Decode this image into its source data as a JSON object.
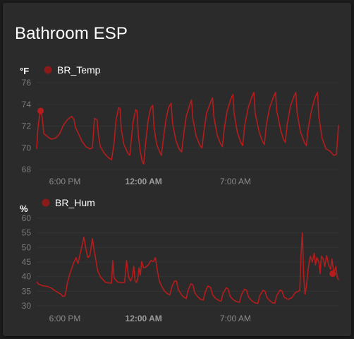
{
  "card": {
    "title": "Bathroom ESP"
  },
  "chart_data": [
    {
      "type": "line",
      "title": "",
      "ylabel": "°F",
      "ylim": [
        68,
        76
      ],
      "y_ticks": [
        "76",
        "74",
        "72",
        "70",
        "68"
      ],
      "x_ticks": [
        {
          "label": "6:00 PM",
          "t": 18.0,
          "bold": false
        },
        {
          "label": "12:00 AM",
          "t": 24.0,
          "bold": true
        },
        {
          "label": "7:00 AM",
          "t": 31.0,
          "bold": false
        }
      ],
      "xlim": [
        15.85,
        38.85
      ],
      "series": [
        {
          "name": "BR_Temp",
          "color": "#b71c1c",
          "points": [
            [
              15.85,
              69.9
            ],
            [
              15.95,
              71.9
            ],
            [
              16.1,
              73.2
            ],
            [
              16.2,
              73.4
            ],
            [
              16.3,
              72.5
            ],
            [
              16.4,
              71.3
            ],
            [
              16.6,
              71.1
            ],
            [
              16.8,
              70.9
            ],
            [
              17.0,
              70.8
            ],
            [
              17.3,
              70.9
            ],
            [
              17.6,
              71.3
            ],
            [
              17.9,
              72.1
            ],
            [
              18.2,
              72.6
            ],
            [
              18.5,
              72.9
            ],
            [
              18.7,
              72.6
            ],
            [
              18.8,
              71.9
            ],
            [
              19.0,
              71.4
            ],
            [
              19.3,
              70.6
            ],
            [
              19.6,
              70.1
            ],
            [
              19.9,
              69.9
            ],
            [
              20.1,
              70.0
            ],
            [
              20.25,
              72.7
            ],
            [
              20.45,
              72.6
            ],
            [
              20.55,
              71.2
            ],
            [
              20.7,
              70.1
            ],
            [
              21.0,
              69.5
            ],
            [
              21.3,
              69.1
            ],
            [
              21.55,
              68.9
            ],
            [
              21.75,
              70.4
            ],
            [
              21.9,
              72.6
            ],
            [
              22.1,
              73.7
            ],
            [
              22.2,
              73.6
            ],
            [
              22.3,
              71.7
            ],
            [
              22.5,
              70.3
            ],
            [
              22.8,
              69.5
            ],
            [
              22.95,
              69.3
            ],
            [
              23.05,
              70.6
            ],
            [
              23.2,
              72.4
            ],
            [
              23.4,
              73.5
            ],
            [
              23.5,
              73.4
            ],
            [
              23.6,
              71.1
            ],
            [
              23.75,
              69.6
            ],
            [
              23.9,
              68.7
            ],
            [
              24.0,
              68.5
            ],
            [
              24.15,
              70.5
            ],
            [
              24.35,
              72.6
            ],
            [
              24.55,
              73.7
            ],
            [
              24.7,
              73.9
            ],
            [
              24.8,
              71.8
            ],
            [
              25.0,
              70.3
            ],
            [
              25.2,
              69.7
            ],
            [
              25.35,
              69.3
            ],
            [
              25.5,
              70.8
            ],
            [
              25.7,
              72.6
            ],
            [
              25.9,
              73.7
            ],
            [
              26.1,
              74.1
            ],
            [
              26.2,
              72.3
            ],
            [
              26.45,
              70.7
            ],
            [
              26.7,
              69.9
            ],
            [
              26.9,
              69.6
            ],
            [
              27.05,
              71.2
            ],
            [
              27.25,
              72.9
            ],
            [
              27.5,
              73.9
            ],
            [
              27.65,
              74.4
            ],
            [
              27.75,
              72.7
            ],
            [
              28.0,
              71.1
            ],
            [
              28.3,
              70.2
            ],
            [
              28.45,
              70.0
            ],
            [
              28.6,
              71.6
            ],
            [
              28.8,
              73.2
            ],
            [
              29.1,
              74.2
            ],
            [
              29.25,
              74.6
            ],
            [
              29.35,
              72.9
            ],
            [
              29.6,
              71.2
            ],
            [
              29.85,
              70.4
            ],
            [
              30.0,
              70.1
            ],
            [
              30.15,
              71.8
            ],
            [
              30.35,
              73.3
            ],
            [
              30.65,
              74.5
            ],
            [
              30.8,
              74.9
            ],
            [
              30.9,
              73.1
            ],
            [
              31.15,
              71.4
            ],
            [
              31.4,
              70.5
            ],
            [
              31.55,
              70.2
            ],
            [
              31.7,
              72.0
            ],
            [
              31.95,
              73.6
            ],
            [
              32.25,
              74.7
            ],
            [
              32.4,
              75.1
            ],
            [
              32.5,
              73.2
            ],
            [
              32.8,
              71.5
            ],
            [
              33.05,
              70.6
            ],
            [
              33.2,
              70.3
            ],
            [
              33.35,
              72.1
            ],
            [
              33.6,
              73.7
            ],
            [
              33.9,
              74.7
            ],
            [
              34.05,
              75.1
            ],
            [
              34.15,
              73.4
            ],
            [
              34.45,
              71.6
            ],
            [
              34.65,
              70.8
            ],
            [
              34.8,
              70.5
            ],
            [
              34.95,
              72.2
            ],
            [
              35.2,
              73.9
            ],
            [
              35.45,
              74.7
            ],
            [
              35.6,
              75.1
            ],
            [
              35.7,
              73.2
            ],
            [
              35.95,
              71.5
            ],
            [
              36.25,
              70.5
            ],
            [
              36.4,
              70.2
            ],
            [
              36.55,
              71.8
            ],
            [
              36.8,
              73.5
            ],
            [
              37.05,
              74.6
            ],
            [
              37.25,
              75.1
            ],
            [
              37.35,
              72.9
            ],
            [
              37.6,
              70.9
            ],
            [
              37.9,
              69.9
            ],
            [
              38.2,
              69.7
            ],
            [
              38.5,
              69.3
            ],
            [
              38.7,
              69.4
            ],
            [
              38.85,
              72.1
            ]
          ],
          "marker": [
            16.15,
            73.4
          ]
        }
      ]
    },
    {
      "type": "line",
      "title": "",
      "ylabel": "%",
      "ylim": [
        30,
        60
      ],
      "y_ticks": [
        "60",
        "55",
        "50",
        "45",
        "40",
        "35",
        "30"
      ],
      "x_ticks": [
        {
          "label": "6:00 PM",
          "t": 18.0,
          "bold": false
        },
        {
          "label": "12:00 AM",
          "t": 24.0,
          "bold": true
        },
        {
          "label": "7:00 AM",
          "t": 31.0,
          "bold": false
        }
      ],
      "xlim": [
        15.85,
        38.85
      ],
      "series": [
        {
          "name": "BR_Hum",
          "color": "#b71c1c",
          "points": [
            [
              15.85,
              38.2
            ],
            [
              16.0,
              37.4
            ],
            [
              16.3,
              36.9
            ],
            [
              16.7,
              36.6
            ],
            [
              17.0,
              36.0
            ],
            [
              17.3,
              35.0
            ],
            [
              17.5,
              34.5
            ],
            [
              17.7,
              34.0
            ],
            [
              17.85,
              33.2
            ],
            [
              18.0,
              33.4
            ],
            [
              18.1,
              35.5
            ],
            [
              18.2,
              38.0
            ],
            [
              18.35,
              40.5
            ],
            [
              18.5,
              42.5
            ],
            [
              18.7,
              45.0
            ],
            [
              18.85,
              46.5
            ],
            [
              19.0,
              44.5
            ],
            [
              19.15,
              47.5
            ],
            [
              19.3,
              50.5
            ],
            [
              19.45,
              53.5
            ],
            [
              19.6,
              49.5
            ],
            [
              19.75,
              46.5
            ],
            [
              19.9,
              47.2
            ],
            [
              20.0,
              50.0
            ],
            [
              20.1,
              53.0
            ],
            [
              20.2,
              50.0
            ],
            [
              20.35,
              46.0
            ],
            [
              20.5,
              42.0
            ],
            [
              20.7,
              40.0
            ],
            [
              20.9,
              39.0
            ],
            [
              21.1,
              38.0
            ],
            [
              21.4,
              37.8
            ],
            [
              21.55,
              37.8
            ],
            [
              21.65,
              45.5
            ],
            [
              21.75,
              39.5
            ],
            [
              21.85,
              39.0
            ],
            [
              22.0,
              38.2
            ],
            [
              22.3,
              38.0
            ],
            [
              22.55,
              38.0
            ],
            [
              22.7,
              45.5
            ],
            [
              22.85,
              40.0
            ],
            [
              23.0,
              38.5
            ],
            [
              23.15,
              40.0
            ],
            [
              23.25,
              43.5
            ],
            [
              23.35,
              38.5
            ],
            [
              23.45,
              38.0
            ],
            [
              23.55,
              39.2
            ],
            [
              23.65,
              43.0
            ],
            [
              23.75,
              40.5
            ],
            [
              23.85,
              45.2
            ],
            [
              24.0,
              43.0
            ],
            [
              24.15,
              43.2
            ],
            [
              24.35,
              44.0
            ],
            [
              24.55,
              45.5
            ],
            [
              24.75,
              45.2
            ],
            [
              24.9,
              46.5
            ],
            [
              25.05,
              42.0
            ],
            [
              25.2,
              38.5
            ],
            [
              25.4,
              36.5
            ],
            [
              25.6,
              35.0
            ],
            [
              25.8,
              34.2
            ],
            [
              26.0,
              33.7
            ],
            [
              26.15,
              36.5
            ],
            [
              26.35,
              38.5
            ],
            [
              26.5,
              38.5
            ],
            [
              26.65,
              35.5
            ],
            [
              26.85,
              34.0
            ],
            [
              27.05,
              33.0
            ],
            [
              27.25,
              32.5
            ],
            [
              27.4,
              35.5
            ],
            [
              27.6,
              37.5
            ],
            [
              27.75,
              37.2
            ],
            [
              27.9,
              34.5
            ],
            [
              28.1,
              33.2
            ],
            [
              28.35,
              32.2
            ],
            [
              28.55,
              32.0
            ],
            [
              28.7,
              34.8
            ],
            [
              28.9,
              36.8
            ],
            [
              29.1,
              36.3
            ],
            [
              29.25,
              33.8
            ],
            [
              29.5,
              32.5
            ],
            [
              29.75,
              31.8
            ],
            [
              29.9,
              31.6
            ],
            [
              30.05,
              34.2
            ],
            [
              30.3,
              36.2
            ],
            [
              30.45,
              35.7
            ],
            [
              30.6,
              33.2
            ],
            [
              30.85,
              32.0
            ],
            [
              31.1,
              31.4
            ],
            [
              31.3,
              31.2
            ],
            [
              31.45,
              33.8
            ],
            [
              31.7,
              35.7
            ],
            [
              31.85,
              35.3
            ],
            [
              32.0,
              33.0
            ],
            [
              32.25,
              31.7
            ],
            [
              32.5,
              31.0
            ],
            [
              32.7,
              30.8
            ],
            [
              32.85,
              33.4
            ],
            [
              33.1,
              35.3
            ],
            [
              33.25,
              35.0
            ],
            [
              33.4,
              32.8
            ],
            [
              33.65,
              31.6
            ],
            [
              33.85,
              31.0
            ],
            [
              34.0,
              30.9
            ],
            [
              34.15,
              33.5
            ],
            [
              34.4,
              35.4
            ],
            [
              34.55,
              35.0
            ],
            [
              34.7,
              33.0
            ],
            [
              35.0,
              32.2
            ],
            [
              35.3,
              32.8
            ],
            [
              35.55,
              34.5
            ],
            [
              35.8,
              35.0
            ],
            [
              35.9,
              35.3
            ],
            [
              36.0,
              48.0
            ],
            [
              36.1,
              55.0
            ],
            [
              36.2,
              40.0
            ],
            [
              36.3,
              34.0
            ],
            [
              36.4,
              36.5
            ],
            [
              36.55,
              43.0
            ],
            [
              36.7,
              47.0
            ],
            [
              36.85,
              45.0
            ],
            [
              37.0,
              48.0
            ],
            [
              37.1,
              44.0
            ],
            [
              37.2,
              46.5
            ],
            [
              37.35,
              45.0
            ],
            [
              37.45,
              41.0
            ],
            [
              37.55,
              47.0
            ],
            [
              37.7,
              46.0
            ],
            [
              37.8,
              43.5
            ],
            [
              37.95,
              47.2
            ],
            [
              38.1,
              44.0
            ],
            [
              38.25,
              42.5
            ],
            [
              38.35,
              46.0
            ],
            [
              38.5,
              41.0
            ],
            [
              38.65,
              43.5
            ],
            [
              38.75,
              40.0
            ],
            [
              38.85,
              38.8
            ]
          ],
          "marker": [
            38.4,
            41.0
          ]
        }
      ]
    }
  ]
}
